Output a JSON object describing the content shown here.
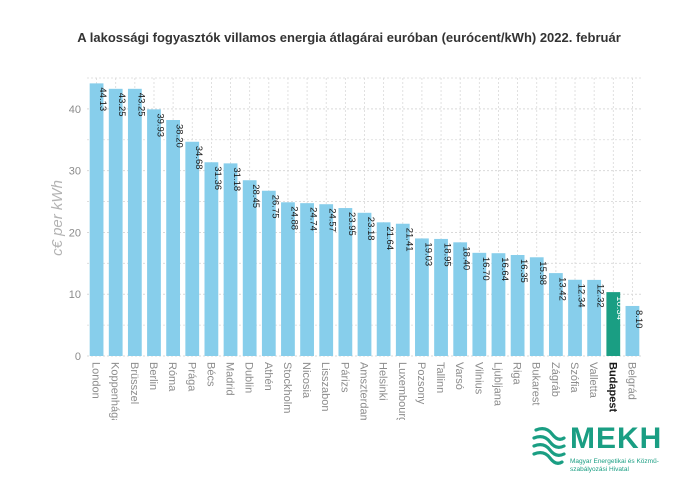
{
  "chart_data": {
    "type": "bar",
    "title": "A lakossági fogyasztók villamos energia átlagárai euróban (eurócent/kWh) 2022. február",
    "ylabel": "c€ per kWh",
    "xlabel": "",
    "ylim": [
      0,
      45
    ],
    "yticks": [
      0,
      10,
      20,
      30,
      40
    ],
    "grid": true,
    "categories": [
      "London",
      "Koppenhága",
      "Brüsszel",
      "Berlin",
      "Róma",
      "Prága",
      "Bécs",
      "Madrid",
      "Dublin",
      "Athén",
      "Stockholm",
      "Nicosia",
      "Lisszabon",
      "Párizs",
      "Amszterdam",
      "Helsinki",
      "Luxembourg",
      "Pozsony",
      "Tallinn",
      "Varsó",
      "Vilnius",
      "Ljubljana",
      "Riga",
      "Bukarest",
      "Zágráb",
      "Szófia",
      "Valletta",
      "Budapest",
      "Belgrád"
    ],
    "values": [
      44.13,
      43.25,
      43.25,
      39.93,
      38.2,
      34.68,
      31.36,
      31.18,
      28.45,
      26.75,
      24.88,
      24.74,
      24.57,
      23.95,
      23.18,
      21.64,
      21.41,
      19.03,
      18.95,
      18.4,
      16.7,
      16.64,
      16.35,
      15.98,
      13.42,
      12.34,
      12.32,
      10.34,
      8.1
    ],
    "value_labels": [
      "44.13",
      "43.25",
      "43.25",
      "39.93",
      "38.20",
      "34.68",
      "31.36",
      "31.18",
      "28.45",
      "26.75",
      "24.88",
      "24.74",
      "24.57",
      "23.95",
      "23.18",
      "21.64",
      "21.41",
      "19.03",
      "18.95",
      "18.40",
      "16.70",
      "16.64",
      "16.35",
      "15.98",
      "13.42",
      "12.34",
      "12.32",
      "10.34",
      "8.10"
    ],
    "highlight": "Budapest",
    "colors": {
      "bar": "#87ceeb",
      "highlight": "#1a9e83",
      "grid": "#d9d9d9",
      "axis_text": "#8c8c8c"
    }
  },
  "logo": {
    "word": "MEKH",
    "subtitle": "Magyar Energetikai és Közmű-szabályozási Hivatal",
    "color": "#1a9e83"
  }
}
